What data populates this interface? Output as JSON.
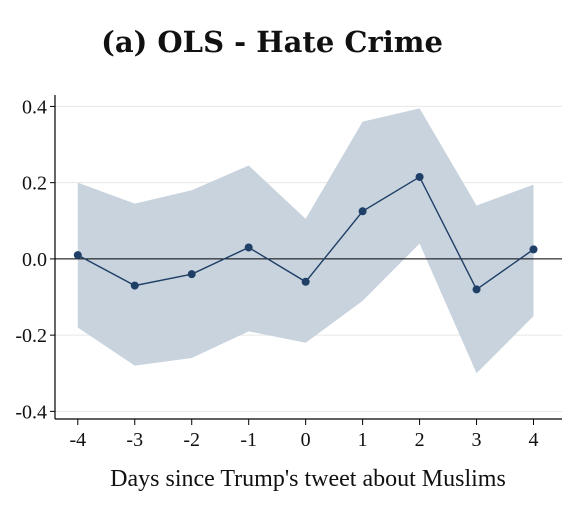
{
  "chart_data": {
    "type": "line",
    "title": "(a) OLS - Hate Crime",
    "xlabel": "Days since Trump's tweet about Muslims",
    "ylabel": "",
    "x": [
      -4,
      -3,
      -2,
      -1,
      0,
      1,
      2,
      3,
      4
    ],
    "x_tick_labels": [
      "-4",
      "-3",
      "-2",
      "-1",
      "0",
      "1",
      "2",
      "3",
      "4"
    ],
    "y_tick_values": [
      0.4,
      0.2,
      0.0,
      -0.2,
      -0.4
    ],
    "y_tick_labels": [
      "0.4",
      "0.2",
      "0.0",
      "-0.2",
      "-0.4"
    ],
    "xlim": [
      -4.4,
      4.5
    ],
    "ylim": [
      -0.42,
      0.43
    ],
    "grid": true,
    "reference_line_y": 0,
    "series": [
      {
        "values": [
          0.01,
          -0.07,
          -0.04,
          0.03,
          -0.06,
          0.125,
          0.215,
          -0.08,
          0.025
        ],
        "ci_lower": [
          -0.18,
          -0.28,
          -0.26,
          -0.19,
          -0.22,
          -0.11,
          0.04,
          -0.3,
          -0.15
        ],
        "ci_upper": [
          0.2,
          0.145,
          0.18,
          0.245,
          0.105,
          0.36,
          0.395,
          0.14,
          0.195
        ],
        "color": "#1f3f66",
        "band_color": "#c8d3de"
      }
    ]
  }
}
